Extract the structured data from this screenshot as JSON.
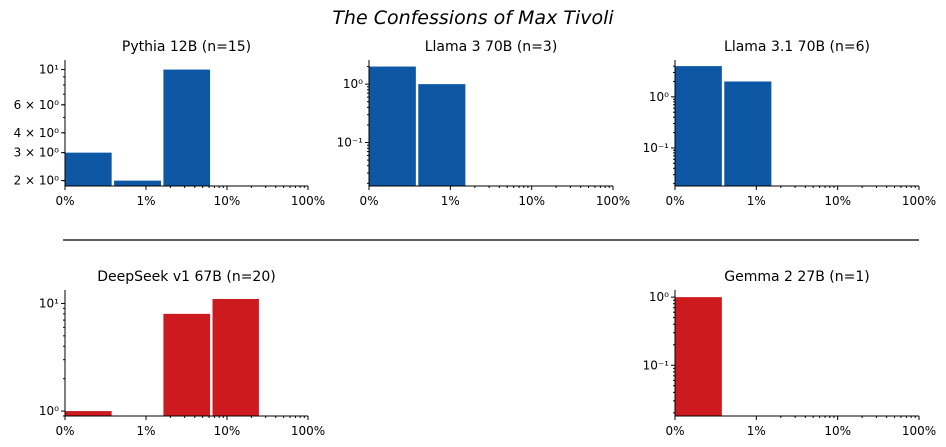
{
  "figure_title": "The Confessions of Max Tivoli",
  "colors": {
    "blue": "#0d57a5",
    "red": "#cc1a1f",
    "axis": "#000000",
    "divider": "#000000"
  },
  "chart_data": [
    {
      "type": "bar",
      "title": "Pythia 12B (n=15)",
      "color": "#0d57a5",
      "y_scale": "log",
      "x_tick_labels": [
        "0%",
        "1%",
        "10%",
        "100%"
      ],
      "y_tick_labels": [
        "2 × 10⁰",
        "3 × 10⁰",
        "4 × 10⁰",
        "6 × 10⁰",
        "10¹"
      ],
      "ylim": [
        1.85,
        11
      ],
      "bars": [
        {
          "bin": "0%–0.4%",
          "value": 3
        },
        {
          "bin": "0.4%–1.6%",
          "value": 2
        },
        {
          "bin": "1.6%–6.4%",
          "value": 10
        }
      ]
    },
    {
      "type": "bar",
      "title": "Llama 3 70B (n=3)",
      "color": "#0d57a5",
      "y_scale": "log",
      "x_tick_labels": [
        "0%",
        "1%",
        "10%",
        "100%"
      ],
      "y_tick_labels": [
        "10⁻¹",
        "10⁰"
      ],
      "ylim": [
        0.018,
        2.3
      ],
      "bars": [
        {
          "bin": "0%–0.4%",
          "value": 2
        },
        {
          "bin": "0.4%–1.6%",
          "value": 1
        }
      ]
    },
    {
      "type": "bar",
      "title": "Llama 3.1 70B (n=6)",
      "color": "#0d57a5",
      "y_scale": "log",
      "x_tick_labels": [
        "0%",
        "1%",
        "10%",
        "100%"
      ],
      "y_tick_labels": [
        "10⁻¹",
        "10⁰"
      ],
      "ylim": [
        0.018,
        4.6
      ],
      "bars": [
        {
          "bin": "0%–0.4%",
          "value": 4
        },
        {
          "bin": "0.4%–1.6%",
          "value": 2
        }
      ]
    },
    {
      "type": "bar",
      "title": "DeepSeek v1 67B (n=20)",
      "color": "#cc1a1f",
      "y_scale": "log",
      "x_tick_labels": [
        "0%",
        "1%",
        "10%",
        "100%"
      ],
      "y_tick_labels": [
        "10⁰",
        "10¹"
      ],
      "ylim": [
        0.9,
        12.5
      ],
      "bars": [
        {
          "bin": "0%–0.4%",
          "value": 1
        },
        {
          "bin": "1.6%–6.4%",
          "value": 8
        },
        {
          "bin": "6.4%–25%",
          "value": 11
        }
      ]
    },
    {
      "type": "bar",
      "title": "Gemma 2 27B (n=1)",
      "color": "#cc1a1f",
      "y_scale": "log",
      "x_tick_labels": [
        "0%",
        "1%",
        "10%",
        "100%"
      ],
      "y_tick_labels": [
        "10⁻¹",
        "10⁰"
      ],
      "ylim": [
        0.018,
        1.15
      ],
      "bars": [
        {
          "bin": "0%–0.4%",
          "value": 1
        }
      ]
    }
  ]
}
